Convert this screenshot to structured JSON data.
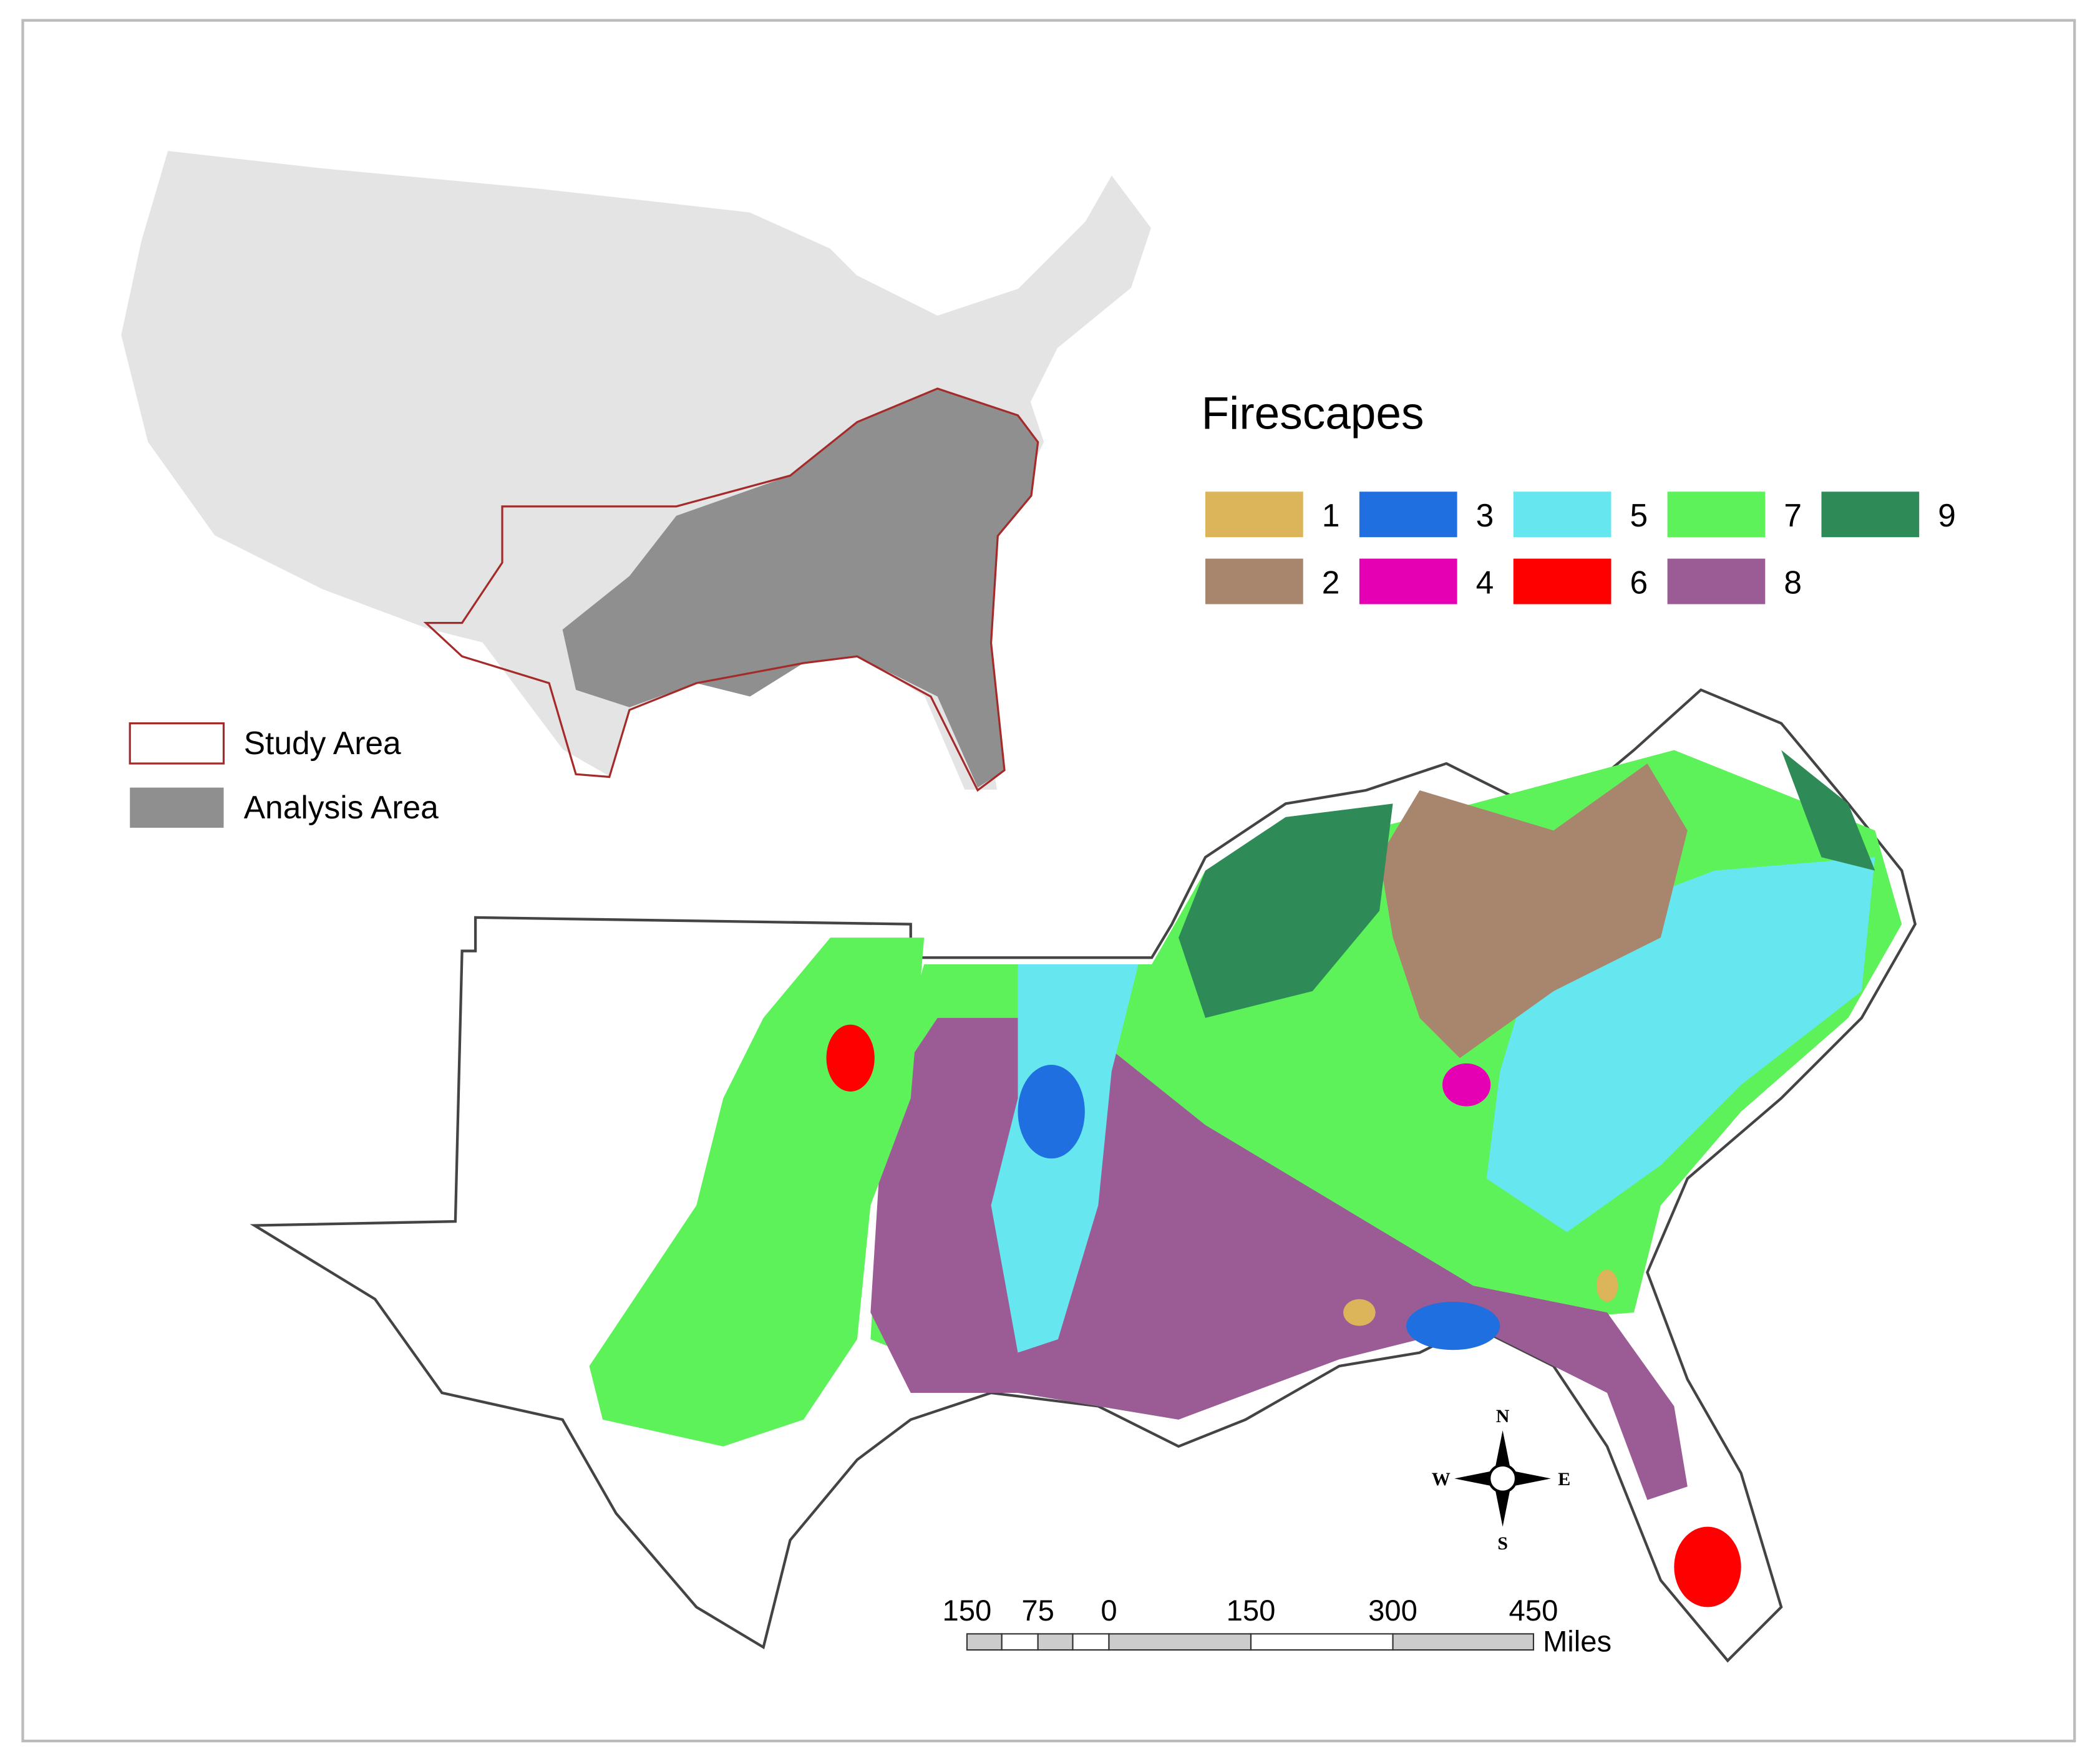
{
  "legend": {
    "title": "Firescapes",
    "items": [
      {
        "label": "1",
        "color": "#dcb45a"
      },
      {
        "label": "2",
        "color": "#a8866e"
      },
      {
        "label": "3",
        "color": "#1f6fe0"
      },
      {
        "label": "4",
        "color": "#e600b4"
      },
      {
        "label": "5",
        "color": "#66e6ee"
      },
      {
        "label": "6",
        "color": "#ff0000"
      },
      {
        "label": "7",
        "color": "#5ef25a"
      },
      {
        "label": "8",
        "color": "#9b5c96"
      },
      {
        "label": "9",
        "color": "#2e8b57"
      }
    ]
  },
  "inset_legend": [
    {
      "label": "Study Area"
    },
    {
      "label": "Analysis Area"
    }
  ],
  "scale_bar": {
    "labels": [
      "150",
      "75",
      "0",
      "150",
      "300",
      "450"
    ],
    "unit": "Miles"
  },
  "compass": {
    "north": "N",
    "south": "S",
    "east": "E",
    "west": "W"
  }
}
